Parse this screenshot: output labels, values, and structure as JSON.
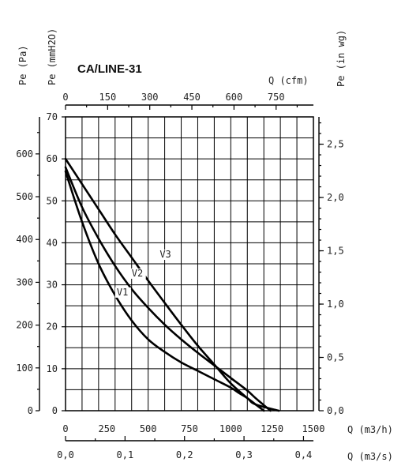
{
  "chart_data": {
    "type": "line",
    "title": "CA/LINE-31",
    "axes": {
      "left_pa_label": "Pe (Pa)",
      "left_mmh2o_label": "Pe (mmH2O)",
      "right_inwg_label": "Pe (in wg)",
      "top_cfm_label": "Q (cfm)",
      "bottom_m3h_label": "Q (m3/h)",
      "bottom_m3s_label": "Q (m3/s)",
      "xlim_m3h": [
        0,
        1500
      ],
      "ylim_mmh2o": [
        0,
        70
      ]
    },
    "ticks": {
      "mmh2o": [
        "0",
        "10",
        "20",
        "30",
        "40",
        "50",
        "60",
        "70"
      ],
      "pa": [
        "0",
        "100",
        "200",
        "300",
        "400",
        "500",
        "600"
      ],
      "inwg": [
        "0,0",
        "0,5",
        "1,0",
        "1,5",
        "2,0",
        "2,5"
      ],
      "cfm": [
        "0",
        "150",
        "300",
        "450",
        "600",
        "750"
      ],
      "m3h": [
        "0",
        "250",
        "500",
        "750",
        "1000",
        "1250",
        "1500"
      ],
      "m3s": [
        "0,0",
        "0,1",
        "0,2",
        "0,3",
        "0,4"
      ]
    },
    "series": [
      {
        "name": "V1",
        "points": [
          [
            0,
            57
          ],
          [
            100,
            45
          ],
          [
            200,
            35
          ],
          [
            300,
            27.5
          ],
          [
            400,
            21.5
          ],
          [
            500,
            17
          ],
          [
            600,
            14
          ],
          [
            700,
            11.5
          ],
          [
            800,
            9.5
          ],
          [
            900,
            7.5
          ],
          [
            1000,
            5.5
          ],
          [
            1050,
            4.2
          ],
          [
            1100,
            3
          ],
          [
            1150,
            1.5
          ],
          [
            1200,
            0
          ]
        ]
      },
      {
        "name": "V2",
        "points": [
          [
            0,
            58
          ],
          [
            100,
            48.5
          ],
          [
            200,
            41
          ],
          [
            300,
            34.5
          ],
          [
            400,
            29
          ],
          [
            500,
            24.5
          ],
          [
            600,
            20.5
          ],
          [
            700,
            17
          ],
          [
            800,
            13.8
          ],
          [
            900,
            10.8
          ],
          [
            1000,
            7.8
          ],
          [
            1100,
            4.8
          ],
          [
            1150,
            3
          ],
          [
            1240,
            0
          ]
        ]
      },
      {
        "name": "V3",
        "points": [
          [
            0,
            60
          ],
          [
            100,
            54
          ],
          [
            200,
            48
          ],
          [
            300,
            42
          ],
          [
            400,
            36.5
          ],
          [
            500,
            31
          ],
          [
            600,
            25.7
          ],
          [
            700,
            20.5
          ],
          [
            800,
            15.5
          ],
          [
            900,
            11
          ],
          [
            1000,
            6.5
          ],
          [
            1100,
            3
          ],
          [
            1150,
            1.5
          ],
          [
            1290,
            0
          ]
        ]
      }
    ],
    "series_labels": [
      {
        "name": "V1",
        "text": "V1",
        "at": [
          310,
          27.5
        ]
      },
      {
        "name": "V2",
        "text": "V2",
        "at": [
          400,
          32
        ]
      },
      {
        "name": "V3",
        "text": "V3",
        "at": [
          570,
          36.5
        ]
      }
    ],
    "grid": true
  }
}
